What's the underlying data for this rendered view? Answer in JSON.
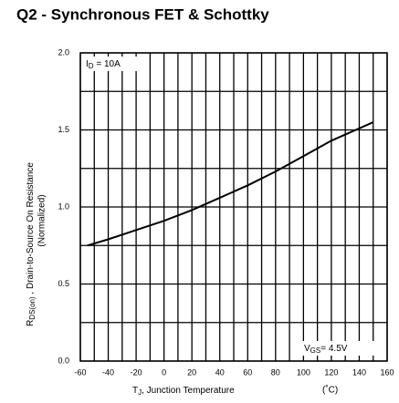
{
  "chart_data": {
    "type": "line",
    "title": "Q2 - Synchronous FET & Schottky",
    "xlabel": {
      "main": "T",
      "sub": "J",
      "rest": ", Junction Temperature",
      "unit": "(˚C)"
    },
    "ylabel": {
      "main": "R",
      "sub": "DS(on)",
      "rest": " , Drain-to-Source On Resistance",
      "line2": "(Normalized)"
    },
    "annotations": [
      {
        "main": "I",
        "sub": "D",
        "rest": " = 10A"
      },
      {
        "main": "V",
        "sub": "GS",
        "rest": "= 4.5V"
      }
    ],
    "x": [
      -55,
      -40,
      -20,
      0,
      20,
      40,
      60,
      80,
      100,
      120,
      150
    ],
    "series": [
      {
        "name": "RDS(on)",
        "color": "#000000",
        "values": [
          0.75,
          0.79,
          0.85,
          0.91,
          0.98,
          1.06,
          1.14,
          1.23,
          1.33,
          1.43,
          1.55
        ]
      }
    ],
    "xlim": [
      -60,
      160
    ],
    "xticks": [
      -60,
      -40,
      -20,
      0,
      20,
      40,
      60,
      80,
      100,
      120,
      140,
      160
    ],
    "ylim": [
      0,
      2
    ],
    "yticks": [
      {
        "value": 0,
        "label": "0.0"
      },
      0.5,
      {
        "value": 1,
        "label": "1.0"
      },
      1.5,
      {
        "value": 2,
        "label": "2.0"
      }
    ],
    "grid": true
  }
}
